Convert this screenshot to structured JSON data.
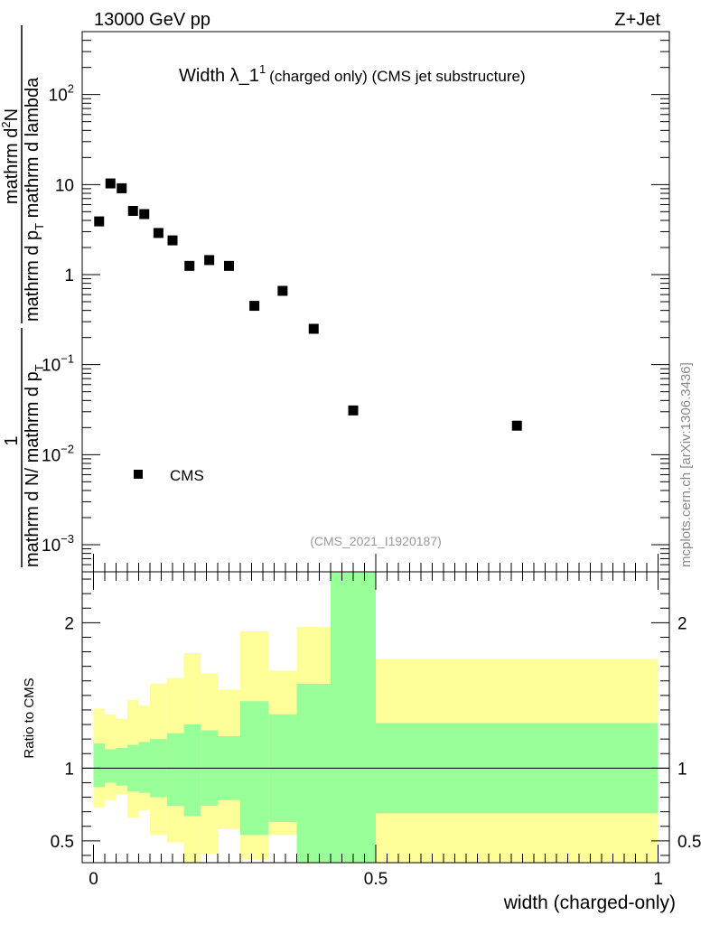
{
  "header": {
    "left": "13000 GeV pp",
    "right": "Z+Jet",
    "title_main": "Width λ_1",
    "title_sup": "1",
    "title_rest": "(charged only) (CMS jet substructure)",
    "analysis_tag": "(CMS_2021_I1920187)",
    "side_credit": "mcplots.cern.ch [arXiv:1306.3436]"
  },
  "ylabel_top": {
    "numerator": "mathrm d",
    "numerator_sup": "2",
    "numerator_rest": "N",
    "denominator": "mathrm d p",
    "denominator_sub": "T",
    "denominator_rest": " mathrm d lambda"
  },
  "ylabel_prefactor": {
    "numerator": "1",
    "denominator": "mathrm d N",
    "denominator_slash": "/ mathrm d p",
    "denominator_sub": "T"
  },
  "colors": {
    "marker": "#000000",
    "band_inner": "#99ff99",
    "band_outer": "#ffff99",
    "axis": "#000000",
    "tag_gray": "#999999"
  },
  "chart_data": [
    {
      "type": "scatter",
      "title": "Width λ_1^1 (charged only) (CMS jet substructure)",
      "xlabel": "width (charged-only)",
      "ylabel": "1 / mathrm d N / mathrm d p_T  mathrm d^2N / mathrm d p_T mathrm d lambda",
      "yscale": "log",
      "xlim": [
        -0.02,
        1.02
      ],
      "ylim": [
        0.0005,
        500
      ],
      "y_ticks": [
        {
          "value": 0.001,
          "base": "10",
          "exp": "−3"
        },
        {
          "value": 0.01,
          "base": "10",
          "exp": "−2"
        },
        {
          "value": 0.1,
          "base": "10",
          "exp": "−1"
        },
        {
          "value": 1,
          "base": "1",
          "exp": ""
        },
        {
          "value": 10,
          "base": "10",
          "exp": ""
        },
        {
          "value": 100,
          "base": "10",
          "exp": "2"
        }
      ],
      "legend": {
        "label": "CMS",
        "position": "bottom-left"
      },
      "series": [
        {
          "name": "CMS",
          "x": [
            0.01,
            0.03,
            0.05,
            0.07,
            0.09,
            0.115,
            0.14,
            0.17,
            0.205,
            0.24,
            0.285,
            0.335,
            0.39,
            0.46,
            0.75
          ],
          "y": [
            3.9,
            10.3,
            9.1,
            5.1,
            4.7,
            2.9,
            2.4,
            1.25,
            1.45,
            1.25,
            0.45,
            0.66,
            0.25,
            0.031,
            0.021
          ]
        }
      ]
    },
    {
      "type": "area",
      "ylabel": "Ratio to CMS",
      "xlabel": "width (charged-only)",
      "xlim": [
        -0.02,
        1.02
      ],
      "ylim": [
        0.35,
        2.35
      ],
      "x_ticks": [
        {
          "value": 0,
          "label": "0"
        },
        {
          "value": 0.5,
          "label": "0.5"
        },
        {
          "value": 1,
          "label": "1"
        }
      ],
      "y_ticks": [
        {
          "value": 0.5,
          "label": "0.5"
        },
        {
          "value": 1,
          "label": "1"
        },
        {
          "value": 2,
          "label": "2"
        }
      ],
      "reference_line": 1,
      "bin_edges": [
        0,
        0.02,
        0.04,
        0.06,
        0.08,
        0.1,
        0.13,
        0.16,
        0.19,
        0.22,
        0.26,
        0.31,
        0.36,
        0.42,
        0.5,
        1.0
      ],
      "band_inner": {
        "name": "stat",
        "low": [
          0.87,
          0.9,
          0.88,
          0.84,
          0.83,
          0.8,
          0.74,
          0.67,
          0.74,
          0.78,
          0.54,
          0.63,
          0.3,
          0.3,
          0.69
        ],
        "high": [
          1.17,
          1.13,
          1.14,
          1.16,
          1.18,
          1.2,
          1.24,
          1.3,
          1.26,
          1.22,
          1.46,
          1.37,
          1.58,
          2.4,
          1.31
        ]
      },
      "band_outer": {
        "name": "total",
        "low": [
          0.73,
          0.78,
          0.82,
          0.66,
          0.71,
          0.54,
          0.49,
          0.35,
          0.41,
          0.58,
          0.37,
          0.54,
          0.3,
          0.3,
          0.3
        ],
        "high": [
          1.41,
          1.37,
          1.34,
          1.47,
          1.43,
          1.58,
          1.62,
          1.79,
          1.65,
          1.54,
          1.94,
          1.67,
          1.97,
          2.4,
          1.75
        ]
      }
    }
  ]
}
